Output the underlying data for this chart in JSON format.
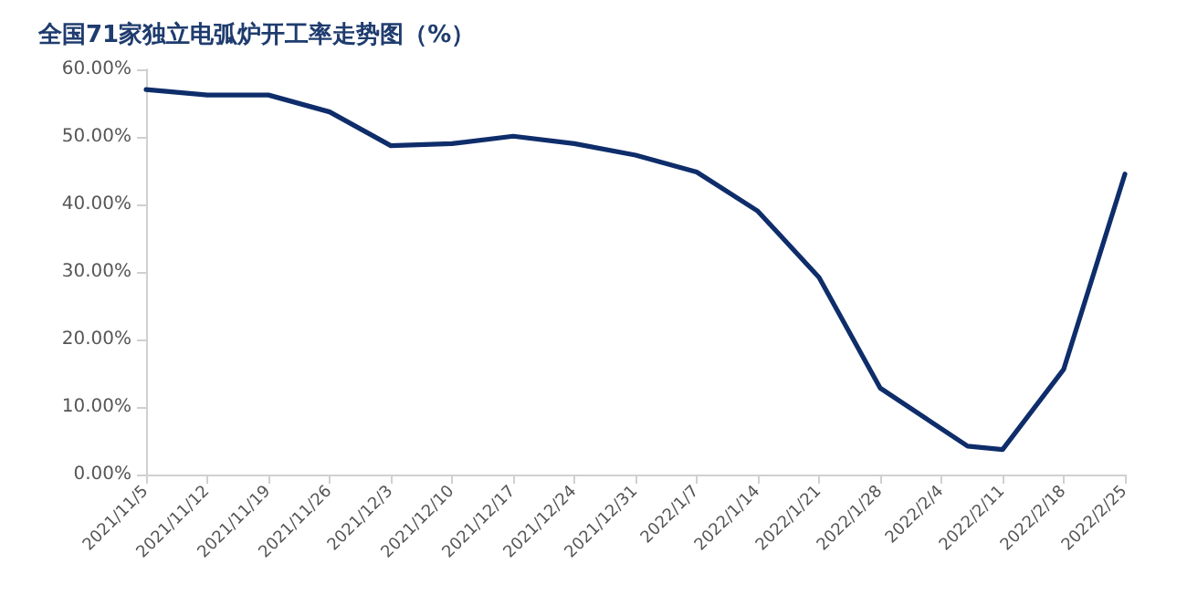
{
  "chart_data": {
    "type": "line",
    "title": "全国71家独立电弧炉开工率走势图（%）",
    "x": [
      "2021-11-05",
      "2021-11-12",
      "2021-11-19",
      "2021-11-26",
      "2021-12-03",
      "2021-12-10",
      "2021-12-17",
      "2021-12-24",
      "2021-12-31",
      "2022-01-07",
      "2022-01-14",
      "2022-01-21",
      "2022-01-28",
      "2022-02-07",
      "2022-02-11",
      "2022-02-18",
      "2022-02-25"
    ],
    "series": [
      {
        "color": "#0e2d6a",
        "values": [
          57.0,
          56.2,
          56.2,
          53.7,
          48.7,
          49.0,
          50.1,
          49.0,
          47.3,
          44.8,
          39.0,
          29.2,
          12.8,
          4.2,
          3.7,
          15.6,
          44.5
        ]
      }
    ],
    "xlim": [
      "2021-11-05",
      "2022-02-25"
    ],
    "xticks": [
      {
        "value": "2021-11-05",
        "label": "2021/11/5"
      },
      {
        "value": "2021-11-12",
        "label": "2021/11/12"
      },
      {
        "value": "2021-11-19",
        "label": "2021/11/19"
      },
      {
        "value": "2021-11-26",
        "label": "2021/11/26"
      },
      {
        "value": "2021-12-03",
        "label": "2021/12/3"
      },
      {
        "value": "2021-12-10",
        "label": "2021/12/10"
      },
      {
        "value": "2021-12-17",
        "label": "2021/12/17"
      },
      {
        "value": "2021-12-24",
        "label": "2021/12/24"
      },
      {
        "value": "2021-12-31",
        "label": "2021/12/31"
      },
      {
        "value": "2022-01-07",
        "label": "2022/1/7"
      },
      {
        "value": "2022-01-14",
        "label": "2022/1/14"
      },
      {
        "value": "2022-01-21",
        "label": "2022/1/21"
      },
      {
        "value": "2022-01-28",
        "label": "2022/1/28"
      },
      {
        "value": "2022-02-04",
        "label": "2022/2/4"
      },
      {
        "value": "2022-02-11",
        "label": "2022/2/11"
      },
      {
        "value": "2022-02-18",
        "label": "2022/2/18"
      },
      {
        "value": "2022-02-25",
        "label": "2022/2/25"
      }
    ],
    "ylim": [
      0,
      60
    ],
    "yticks": [
      {
        "value": 0,
        "label": "0.00%"
      },
      {
        "value": 10,
        "label": "10.00%"
      },
      {
        "value": 20,
        "label": "20.00%"
      },
      {
        "value": 30,
        "label": "30.00%"
      },
      {
        "value": 40,
        "label": "40.00%"
      },
      {
        "value": 50,
        "label": "50.00%"
      },
      {
        "value": 60,
        "label": "60.00%"
      }
    ],
    "grid": false,
    "marker": "none",
    "line_style": "solid"
  }
}
